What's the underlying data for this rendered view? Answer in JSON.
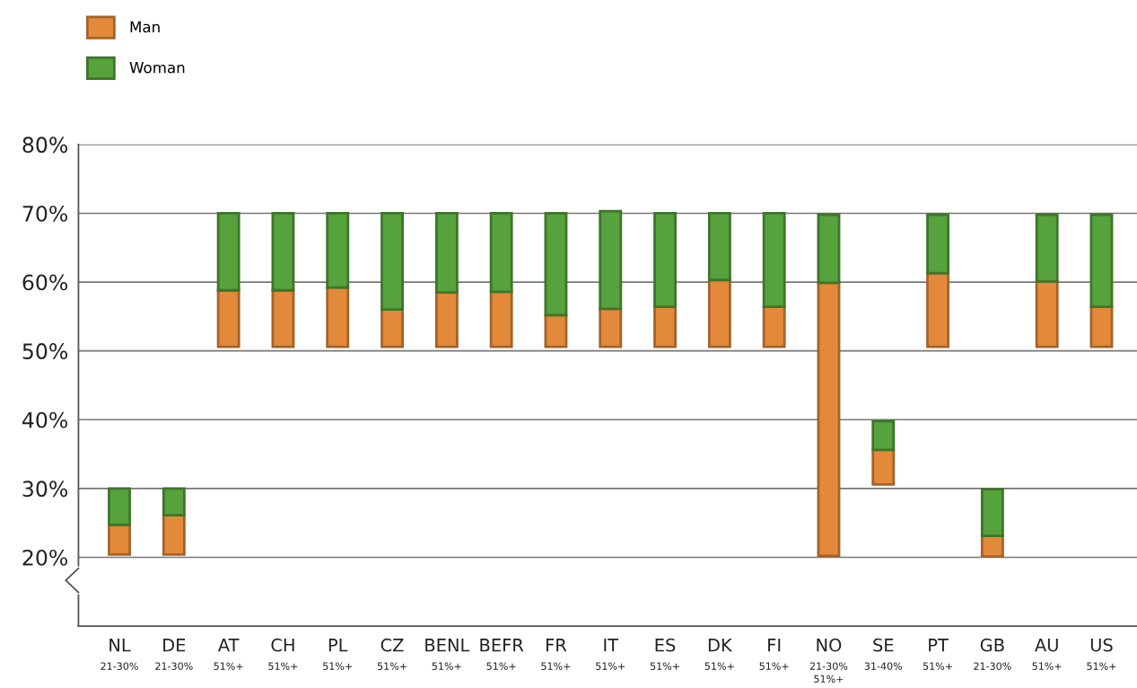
{
  "chart_data": {
    "type": "bar",
    "categories": [
      "NL\n21-30%",
      "DE\n21-30%",
      "AT\n51%+",
      "CH\n51%+",
      "PL\n51%+",
      "CZ\n51%+",
      "BENL\n51%+",
      "BEFR\n51%+",
      "FR\n51%+",
      "IT\n51%+",
      "ES\n51%+",
      "DK\n51%+",
      "FI\n51%+",
      "NO\n21-30%\n51%+",
      "SE\n31-40%",
      "PT\n51%+",
      "GB\n21-30%",
      "AU\n51%+",
      "US\n51%+"
    ],
    "series": [
      {
        "name": "Man",
        "color": "#e38a3a",
        "base": [
          20.4,
          20.4,
          50.6,
          50.6,
          50.6,
          50.6,
          50.6,
          50.6,
          50.6,
          50.6,
          50.6,
          50.6,
          50.6,
          20.2,
          30.6,
          50.6,
          20.1,
          50.6,
          50.6
        ],
        "values": [
          4.3,
          5.7,
          8.2,
          8.2,
          8.6,
          5.4,
          7.9,
          8.0,
          4.6,
          5.5,
          5.8,
          9.7,
          5.8,
          39.7,
          5.0,
          10.7,
          3.0,
          9.5,
          5.8
        ]
      },
      {
        "name": "Woman",
        "color": "#56a23c",
        "base": [
          24.7,
          26.1,
          58.8,
          58.8,
          59.2,
          56.0,
          58.5,
          58.6,
          55.2,
          56.1,
          56.4,
          60.3,
          56.4,
          59.9,
          35.6,
          61.3,
          23.1,
          60.1,
          56.4
        ],
        "values": [
          5.3,
          3.9,
          11.2,
          11.2,
          10.8,
          14.0,
          11.5,
          11.4,
          14.8,
          14.2,
          13.6,
          9.7,
          13.6,
          9.9,
          4.2,
          8.5,
          6.8,
          9.7,
          13.4
        ]
      }
    ],
    "ylim": [
      10,
      80
    ],
    "yticks": [
      {
        "value": 20,
        "label": "20%"
      },
      {
        "value": 30,
        "label": "30%"
      },
      {
        "value": 40,
        "label": "40%"
      },
      {
        "value": 50,
        "label": "50%"
      },
      {
        "value": 60,
        "label": "60%"
      },
      {
        "value": 70,
        "label": "70%"
      },
      {
        "value": 80,
        "label": "80%"
      }
    ],
    "grid": "y",
    "legend": "top left"
  }
}
